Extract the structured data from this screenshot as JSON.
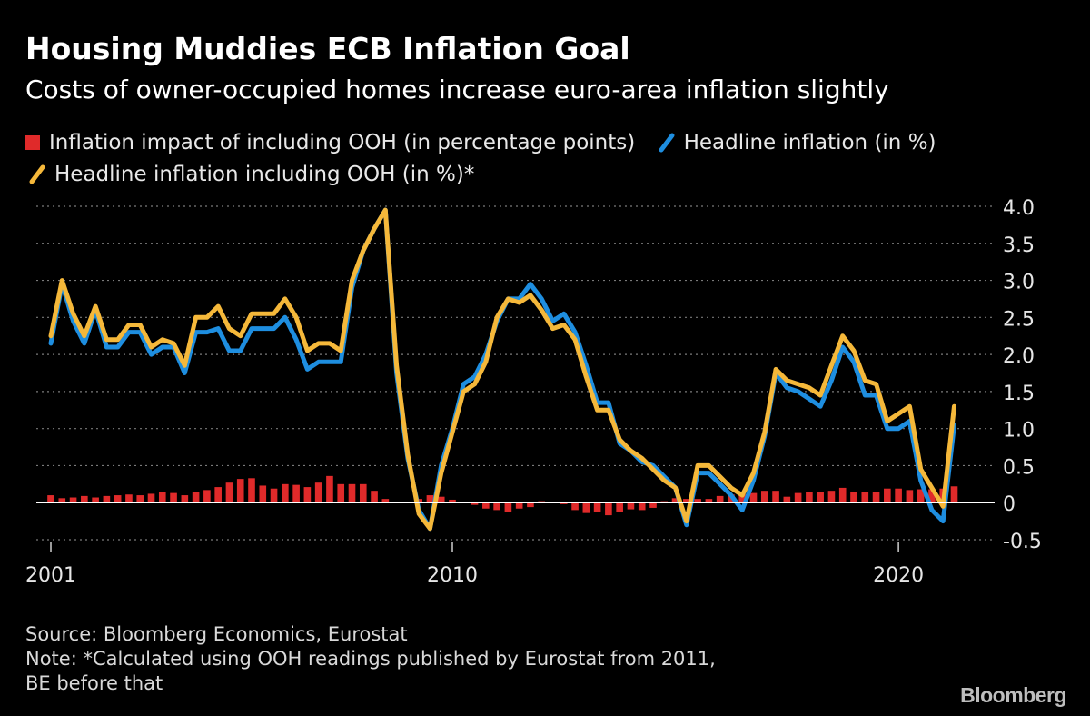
{
  "title": "Housing Muddies ECB Inflation Goal",
  "subtitle": "Costs of owner-occupied homes increase euro-area inflation slightly",
  "legend": {
    "impact": "Inflation impact of including OOH (in percentage points)",
    "headline": "Headline inflation (in %)",
    "headline_ooh": "Headline inflation including OOH (in %)*"
  },
  "colors": {
    "background": "#000000",
    "impact": "#e02a2a",
    "headline": "#1e8ee0",
    "headline_ooh": "#f5b83a",
    "grid": "#7a7a7a",
    "text": "#ffffff"
  },
  "source": "Source: Bloomberg Economics, Eurostat",
  "note": "Note: *Calculated using OOH readings published by Eurostat from 2011, BE before that",
  "brand": "Bloomberg",
  "chart_data": {
    "type": "line",
    "title": "Housing Muddies ECB Inflation Goal",
    "xlabel": "",
    "ylabel": "",
    "xlim": [
      2001,
      2021.6
    ],
    "ylim": [
      -0.5,
      4.0
    ],
    "yticks": [
      4.0,
      3.5,
      3.0,
      2.5,
      2.0,
      1.5,
      1.0,
      0.5,
      0,
      -0.5
    ],
    "ytick_labels": [
      "4.0",
      "3.5",
      "3.0",
      "2.5",
      "2.0",
      "1.5",
      "1.0",
      "0.5",
      "0",
      "-0.5"
    ],
    "xticks": [
      2001,
      2010,
      2020
    ],
    "xtick_labels": [
      "2001",
      "2010",
      "2020"
    ],
    "grid": true,
    "x": [
      2001.0,
      2001.25,
      2001.5,
      2001.75,
      2002.0,
      2002.25,
      2002.5,
      2002.75,
      2003.0,
      2003.25,
      2003.5,
      2003.75,
      2004.0,
      2004.25,
      2004.5,
      2004.75,
      2005.0,
      2005.25,
      2005.5,
      2005.75,
      2006.0,
      2006.25,
      2006.5,
      2006.75,
      2007.0,
      2007.25,
      2007.5,
      2007.75,
      2008.0,
      2008.25,
      2008.5,
      2008.75,
      2009.0,
      2009.25,
      2009.5,
      2009.75,
      2010.0,
      2010.25,
      2010.5,
      2010.75,
      2011.0,
      2011.25,
      2011.5,
      2011.75,
      2012.0,
      2012.25,
      2012.5,
      2012.75,
      2013.0,
      2013.25,
      2013.5,
      2013.75,
      2014.0,
      2014.25,
      2014.5,
      2014.75,
      2015.0,
      2015.25,
      2015.5,
      2015.75,
      2016.0,
      2016.25,
      2016.5,
      2016.75,
      2017.0,
      2017.25,
      2017.5,
      2017.75,
      2018.0,
      2018.25,
      2018.5,
      2018.75,
      2019.0,
      2019.25,
      2019.5,
      2019.75,
      2020.0,
      2020.25,
      2020.5,
      2020.75,
      2021.0,
      2021.25
    ],
    "series": [
      {
        "name": "Headline inflation (in %)",
        "type": "line",
        "values": [
          2.15,
          2.95,
          2.45,
          2.15,
          2.6,
          2.1,
          2.1,
          2.3,
          2.3,
          2.0,
          2.1,
          2.1,
          1.75,
          2.3,
          2.3,
          2.35,
          2.05,
          2.05,
          2.35,
          2.35,
          2.35,
          2.5,
          2.2,
          1.8,
          1.9,
          1.9,
          1.9,
          2.9,
          3.4,
          3.7,
          3.95,
          1.75,
          0.6,
          -0.1,
          -0.35,
          0.5,
          1.0,
          1.6,
          1.7,
          2.0,
          2.45,
          2.75,
          2.75,
          2.95,
          2.75,
          2.45,
          2.55,
          2.3,
          1.85,
          1.35,
          1.35,
          0.8,
          0.7,
          0.55,
          0.5,
          0.35,
          0.2,
          -0.3,
          0.4,
          0.4,
          0.25,
          0.1,
          -0.1,
          0.3,
          0.9,
          1.75,
          1.55,
          1.5,
          1.4,
          1.3,
          1.65,
          2.1,
          1.9,
          1.45,
          1.45,
          1.0,
          1.0,
          1.1,
          0.3,
          -0.1,
          -0.25,
          1.05
        ]
      },
      {
        "name": "Headline inflation including OOH (in %)*",
        "type": "line",
        "values": [
          2.25,
          3.0,
          2.55,
          2.25,
          2.65,
          2.2,
          2.2,
          2.4,
          2.4,
          2.1,
          2.2,
          2.15,
          1.85,
          2.5,
          2.5,
          2.65,
          2.35,
          2.25,
          2.55,
          2.55,
          2.55,
          2.75,
          2.5,
          2.05,
          2.15,
          2.15,
          2.05,
          3.0,
          3.4,
          3.7,
          3.95,
          1.85,
          0.65,
          -0.15,
          -0.35,
          0.4,
          0.95,
          1.5,
          1.6,
          1.9,
          2.5,
          2.75,
          2.7,
          2.8,
          2.6,
          2.35,
          2.4,
          2.2,
          1.7,
          1.25,
          1.25,
          0.85,
          0.7,
          0.6,
          0.45,
          0.3,
          0.2,
          -0.25,
          0.5,
          0.5,
          0.35,
          0.2,
          0.1,
          0.4,
          0.95,
          1.8,
          1.65,
          1.6,
          1.55,
          1.45,
          1.85,
          2.25,
          2.05,
          1.65,
          1.6,
          1.1,
          1.2,
          1.3,
          0.45,
          0.2,
          -0.05,
          1.3
        ]
      },
      {
        "name": "Inflation impact of including OOH (in percentage points)",
        "type": "bar",
        "values": [
          0.1,
          0.06,
          0.07,
          0.09,
          0.07,
          0.09,
          0.1,
          0.11,
          0.1,
          0.12,
          0.14,
          0.13,
          0.1,
          0.14,
          0.17,
          0.21,
          0.27,
          0.32,
          0.33,
          0.23,
          0.19,
          0.25,
          0.24,
          0.21,
          0.27,
          0.36,
          0.25,
          0.25,
          0.25,
          0.16,
          0.05,
          0.01,
          0.01,
          0.05,
          0.1,
          0.08,
          0.04,
          0.01,
          -0.03,
          -0.08,
          -0.1,
          -0.13,
          -0.08,
          -0.06,
          0.02,
          0.01,
          -0.02,
          -0.1,
          -0.14,
          -0.12,
          -0.17,
          -0.13,
          -0.09,
          -0.1,
          -0.07,
          0.02,
          0.06,
          0.05,
          0.05,
          0.05,
          0.09,
          0.11,
          0.11,
          0.13,
          0.16,
          0.16,
          0.08,
          0.13,
          0.14,
          0.14,
          0.16,
          0.2,
          0.15,
          0.14,
          0.14,
          0.19,
          0.19,
          0.17,
          0.18,
          0.18,
          0.19,
          0.22
        ]
      }
    ]
  }
}
